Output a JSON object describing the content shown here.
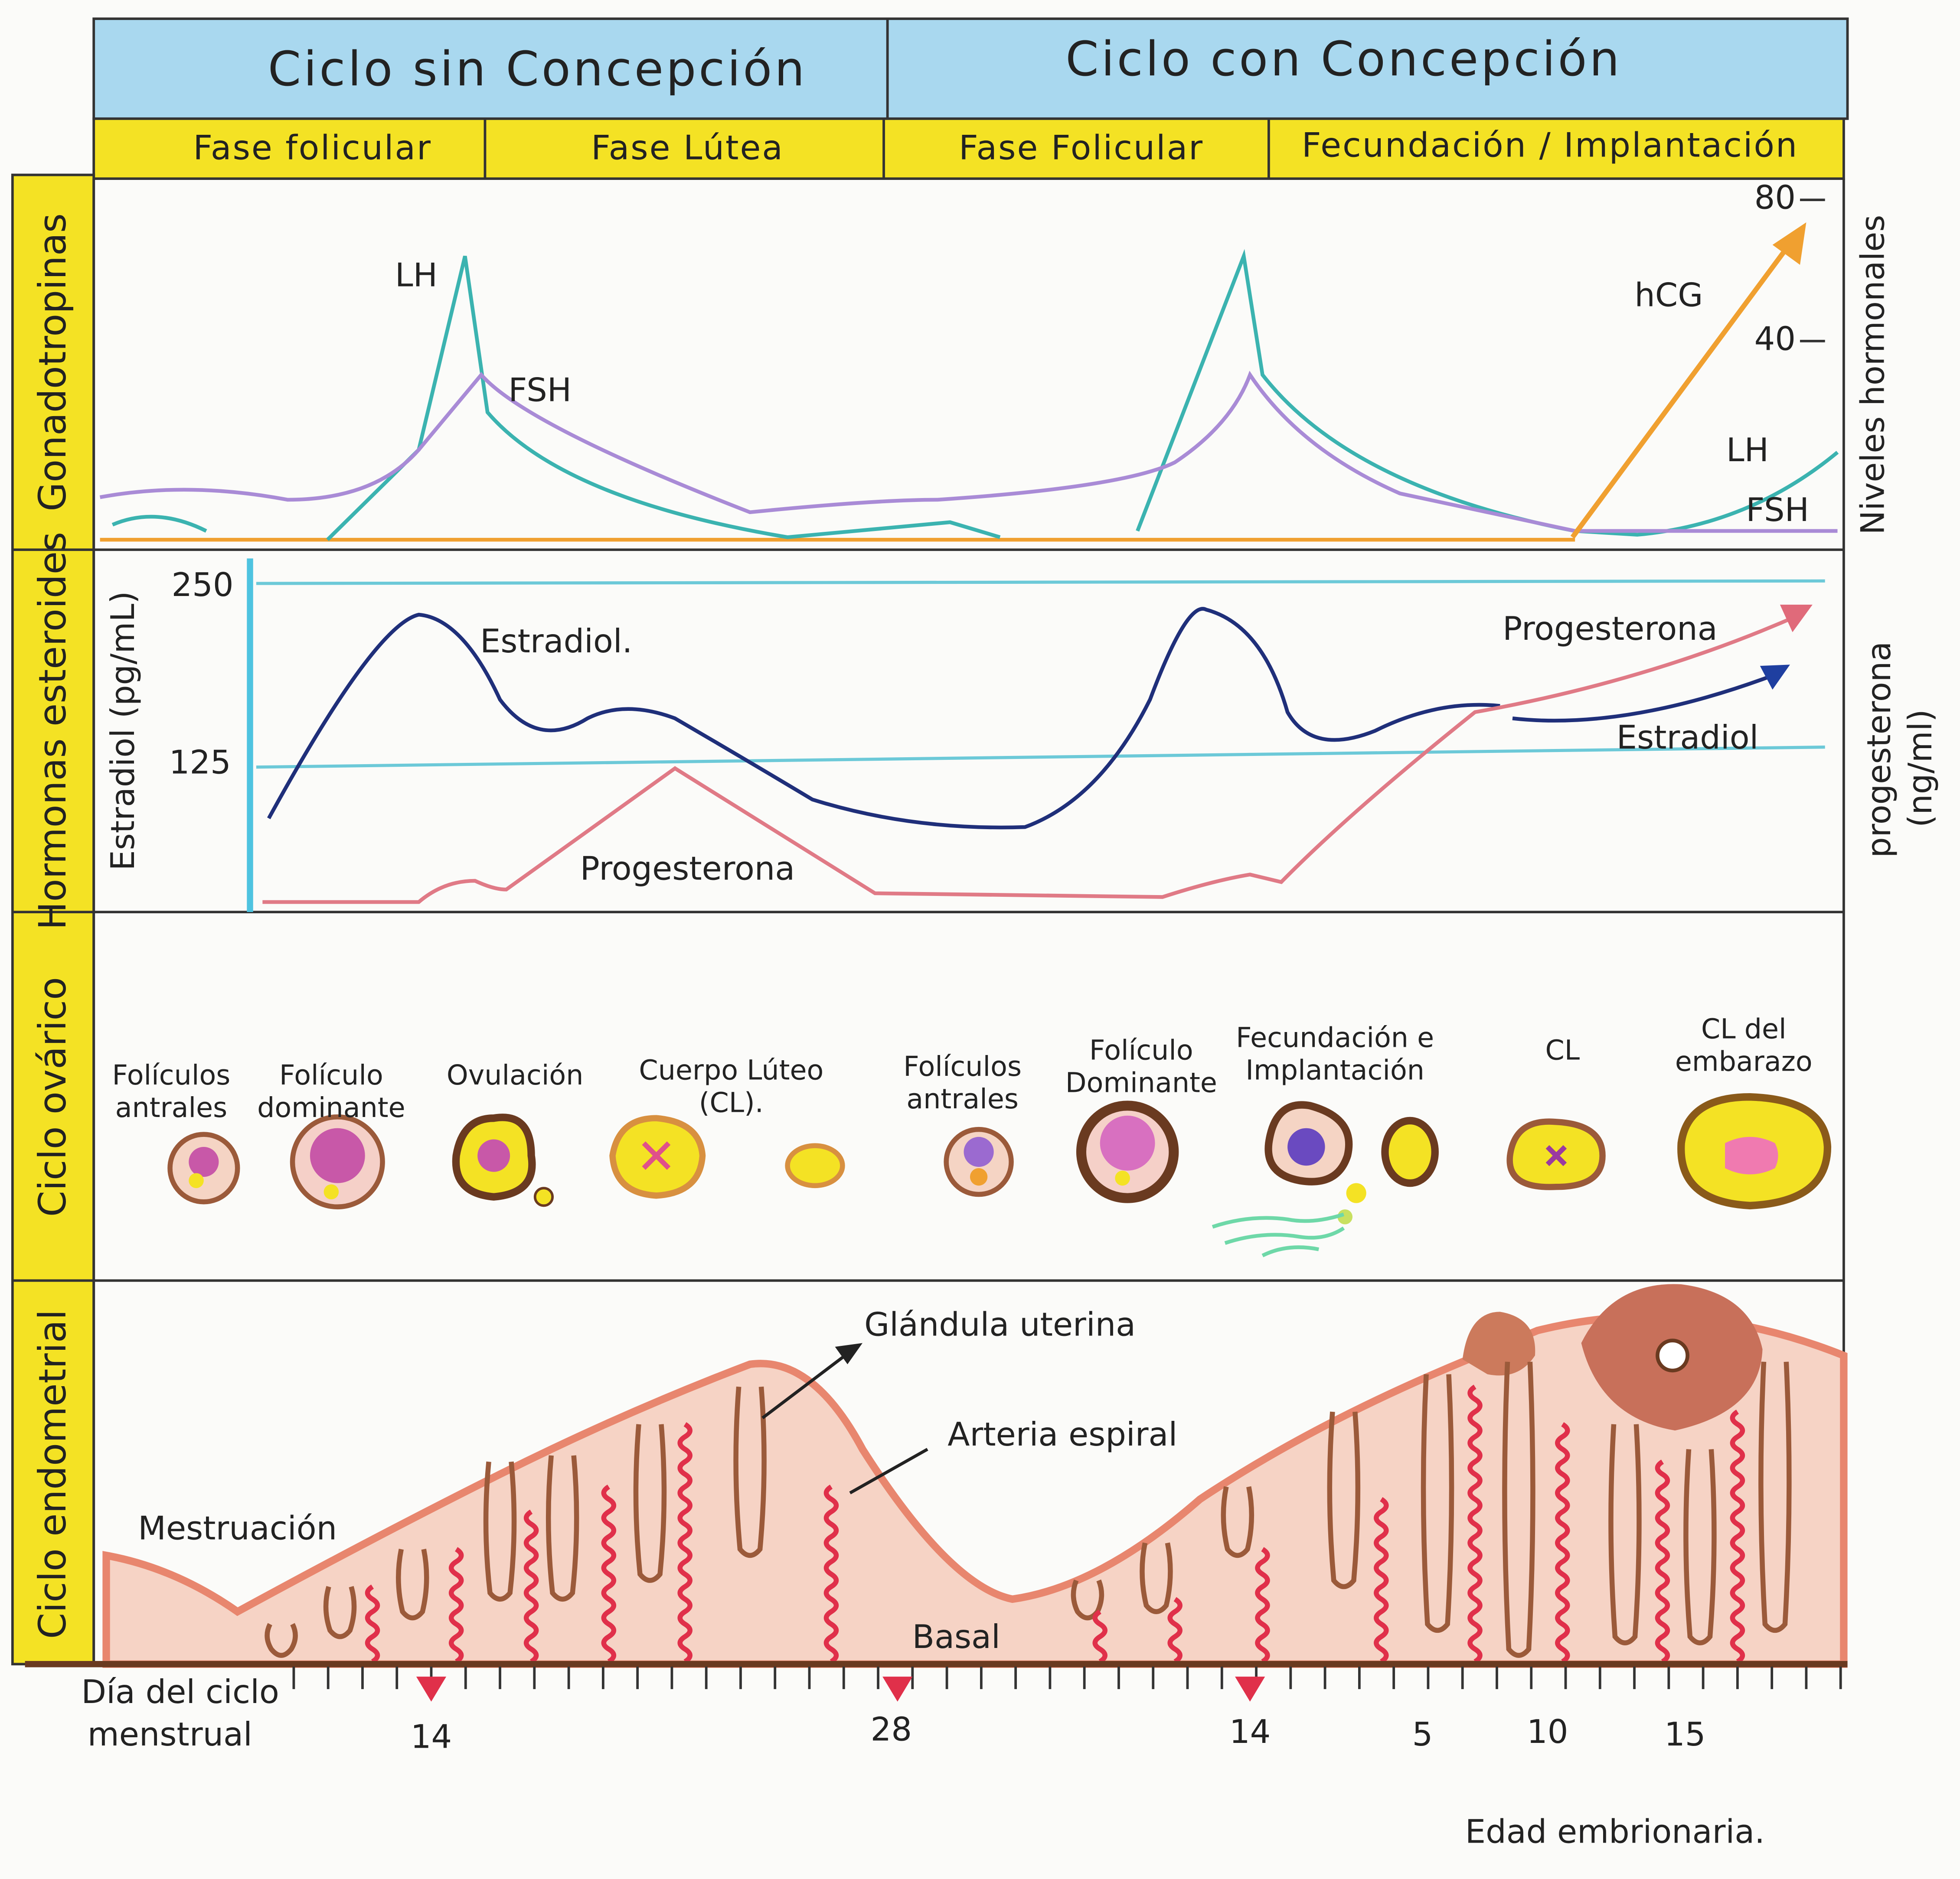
{
  "header": {
    "left": "Ciclo sin Concepción",
    "right": "Ciclo con Concepción"
  },
  "phases": [
    "Fase folicular",
    "Fase Lútea",
    "Fase Folicular",
    "Fecundación / Implantación"
  ],
  "rows": [
    "Gonadotropinas",
    "Hormonas esteroides",
    "Ciclo ovárico",
    "Ciclo endometrial"
  ],
  "gonadotropins": {
    "labels": [
      "LH",
      "FSH",
      "hCG",
      "LH",
      "FSH"
    ],
    "ticks": [
      "80",
      "40"
    ],
    "axis_title": "Niveles hormonales"
  },
  "steroids": {
    "left_axis_title": "Estradiol (pg/mL)",
    "left_ticks": [
      "250",
      "125"
    ],
    "right_axis_title": [
      "progesterona",
      "(ng/ml)"
    ],
    "labels": [
      "Estradiol.",
      "Progesterona",
      "Progesterona",
      "Estradiol"
    ]
  },
  "ovarian": {
    "labels": [
      [
        "Folículos",
        "antrales"
      ],
      [
        "Folículo",
        "dominante"
      ],
      [
        "Ovulación"
      ],
      [
        "Cuerpo Lúteo",
        "(CL)."
      ],
      [
        "Folículos",
        "antrales"
      ],
      [
        "Folículo",
        "Dominante"
      ],
      [
        "Fecundación e",
        "Implantación"
      ],
      [
        "CL"
      ],
      [
        "CL del",
        "embarazo"
      ]
    ]
  },
  "endometrial": {
    "labels": [
      "Mestruación",
      "Glándula uterina",
      "Arteria espiral",
      "Basal"
    ]
  },
  "timeline": {
    "title": [
      "Día del ciclo",
      "menstrual"
    ],
    "days": [
      "14",
      "28",
      "14",
      "5",
      "10",
      "15"
    ],
    "embryo_title": "Edad embrionaria."
  }
}
